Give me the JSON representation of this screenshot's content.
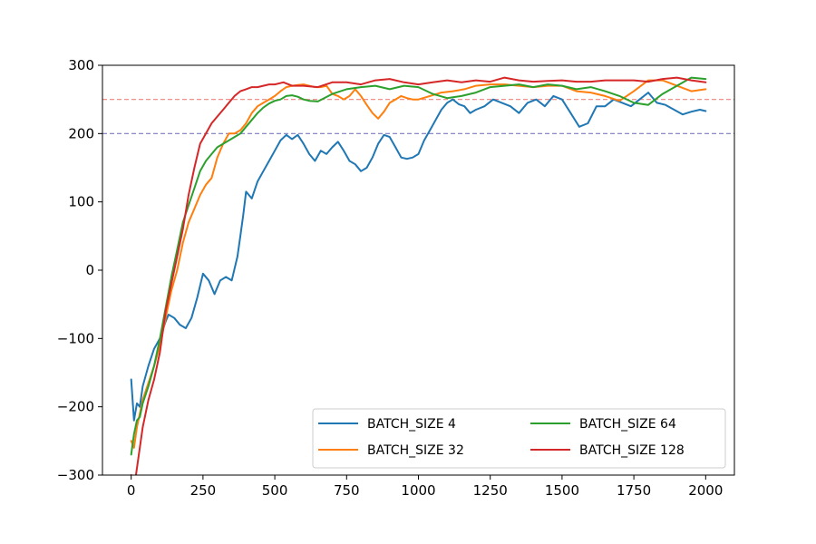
{
  "chart_data": {
    "type": "line",
    "title": "",
    "xlabel": "",
    "ylabel": "",
    "xlim": [
      -100,
      2100
    ],
    "ylim": [
      -300,
      300
    ],
    "xticks": [
      0,
      250,
      500,
      750,
      1000,
      1250,
      1500,
      1750,
      2000
    ],
    "yticks": [
      -300,
      -200,
      -100,
      0,
      100,
      200,
      300
    ],
    "xtick_labels": [
      "0",
      "250",
      "500",
      "750",
      "1000",
      "1250",
      "1500",
      "1750",
      "2000"
    ],
    "ytick_labels": [
      "−300",
      "−200",
      "−100",
      "0",
      "100",
      "200",
      "300"
    ],
    "grid": false,
    "legend": {
      "placement": "lower-right",
      "columns": 2
    },
    "reference_lines": [
      {
        "y": 250,
        "color": "#f08080",
        "style": "dashed"
      },
      {
        "y": 200,
        "color": "#7a7ac0",
        "style": "dashed"
      }
    ],
    "series": [
      {
        "name": "BATCH_SIZE 4",
        "color": "#1f77b4",
        "x": [
          0,
          10,
          20,
          30,
          40,
          60,
          80,
          100,
          120,
          130,
          150,
          170,
          190,
          210,
          230,
          250,
          270,
          290,
          310,
          330,
          350,
          370,
          380,
          390,
          400,
          420,
          440,
          460,
          480,
          500,
          520,
          540,
          560,
          580,
          600,
          620,
          640,
          660,
          680,
          700,
          720,
          740,
          760,
          780,
          800,
          820,
          840,
          860,
          880,
          900,
          920,
          940,
          960,
          980,
          1000,
          1020,
          1040,
          1060,
          1080,
          1100,
          1120,
          1140,
          1160,
          1180,
          1200,
          1230,
          1260,
          1290,
          1320,
          1350,
          1380,
          1410,
          1440,
          1470,
          1500,
          1530,
          1560,
          1590,
          1620,
          1650,
          1680,
          1710,
          1740,
          1770,
          1800,
          1830,
          1860,
          1890,
          1920,
          1950,
          1980,
          2000
        ],
        "y": [
          -160,
          -220,
          -195,
          -200,
          -170,
          -140,
          -115,
          -100,
          -75,
          -65,
          -70,
          -80,
          -85,
          -70,
          -40,
          -5,
          -15,
          -35,
          -15,
          -10,
          -15,
          20,
          50,
          80,
          115,
          105,
          130,
          145,
          160,
          175,
          190,
          198,
          192,
          198,
          185,
          170,
          160,
          175,
          170,
          180,
          188,
          175,
          160,
          155,
          145,
          150,
          165,
          185,
          198,
          195,
          180,
          165,
          163,
          165,
          170,
          190,
          205,
          220,
          235,
          245,
          250,
          243,
          240,
          230,
          235,
          240,
          250,
          245,
          240,
          230,
          245,
          250,
          240,
          255,
          250,
          230,
          210,
          215,
          240,
          240,
          250,
          245,
          240,
          250,
          260,
          245,
          242,
          235,
          228,
          232,
          235,
          233
        ]
      },
      {
        "name": "BATCH_SIZE 32",
        "color": "#ff7f0e",
        "x": [
          0,
          10,
          20,
          40,
          60,
          80,
          100,
          120,
          140,
          160,
          180,
          200,
          220,
          240,
          260,
          280,
          300,
          320,
          340,
          360,
          380,
          400,
          420,
          440,
          460,
          480,
          500,
          520,
          540,
          560,
          580,
          600,
          620,
          640,
          660,
          680,
          700,
          720,
          740,
          760,
          780,
          800,
          820,
          840,
          860,
          880,
          900,
          920,
          940,
          960,
          980,
          1000,
          1040,
          1080,
          1120,
          1160,
          1200,
          1250,
          1300,
          1350,
          1400,
          1450,
          1500,
          1550,
          1600,
          1650,
          1700,
          1750,
          1800,
          1850,
          1900,
          1950,
          2000
        ],
        "y": [
          -250,
          -260,
          -230,
          -190,
          -165,
          -140,
          -110,
          -70,
          -30,
          0,
          40,
          70,
          90,
          110,
          125,
          135,
          165,
          185,
          200,
          200,
          205,
          215,
          230,
          240,
          245,
          250,
          255,
          262,
          268,
          270,
          271,
          272,
          270,
          268,
          268,
          270,
          258,
          255,
          250,
          255,
          265,
          255,
          242,
          230,
          222,
          232,
          245,
          250,
          255,
          252,
          250,
          250,
          255,
          260,
          262,
          265,
          270,
          272,
          272,
          270,
          268,
          270,
          270,
          262,
          260,
          255,
          248,
          262,
          278,
          278,
          270,
          262,
          265
        ]
      },
      {
        "name": "BATCH_SIZE 64",
        "color": "#2ca02c",
        "x": [
          0,
          10,
          20,
          30,
          40,
          60,
          80,
          100,
          120,
          140,
          160,
          180,
          200,
          220,
          240,
          260,
          280,
          300,
          320,
          340,
          360,
          380,
          400,
          420,
          440,
          460,
          480,
          500,
          520,
          540,
          560,
          580,
          600,
          620,
          650,
          700,
          750,
          800,
          850,
          900,
          950,
          1000,
          1050,
          1100,
          1150,
          1200,
          1250,
          1300,
          1350,
          1400,
          1450,
          1500,
          1550,
          1600,
          1650,
          1700,
          1750,
          1800,
          1850,
          1900,
          1950,
          2000
        ],
        "y": [
          -270,
          -240,
          -220,
          -215,
          -195,
          -170,
          -140,
          -100,
          -55,
          -10,
          30,
          70,
          95,
          120,
          145,
          160,
          170,
          180,
          185,
          190,
          195,
          200,
          210,
          220,
          230,
          238,
          244,
          248,
          250,
          255,
          256,
          254,
          250,
          248,
          247,
          258,
          265,
          268,
          270,
          265,
          270,
          268,
          258,
          252,
          255,
          260,
          268,
          270,
          272,
          268,
          272,
          270,
          265,
          268,
          262,
          255,
          245,
          242,
          258,
          270,
          282,
          280
        ]
      },
      {
        "name": "BATCH_SIZE 128",
        "color": "#d62728",
        "x": [
          0,
          10,
          20,
          40,
          60,
          80,
          100,
          120,
          140,
          160,
          180,
          200,
          220,
          240,
          260,
          280,
          300,
          320,
          340,
          360,
          380,
          400,
          420,
          440,
          460,
          480,
          500,
          530,
          560,
          600,
          650,
          700,
          750,
          800,
          850,
          900,
          950,
          1000,
          1050,
          1100,
          1150,
          1200,
          1250,
          1300,
          1350,
          1400,
          1450,
          1500,
          1550,
          1600,
          1650,
          1700,
          1750,
          1800,
          1850,
          1900,
          1950,
          2000
        ],
        "y": [
          -300,
          -320,
          -290,
          -230,
          -190,
          -160,
          -120,
          -60,
          -20,
          20,
          60,
          110,
          150,
          185,
          200,
          215,
          225,
          235,
          245,
          255,
          262,
          265,
          268,
          268,
          270,
          272,
          272,
          275,
          270,
          270,
          268,
          275,
          275,
          272,
          278,
          280,
          275,
          272,
          275,
          278,
          275,
          278,
          276,
          282,
          278,
          276,
          277,
          278,
          276,
          276,
          278,
          278,
          278,
          276,
          280,
          282,
          278,
          275
        ]
      }
    ]
  }
}
